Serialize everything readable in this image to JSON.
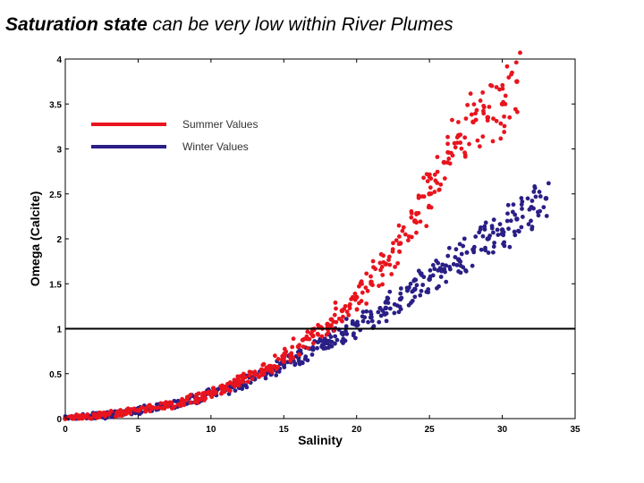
{
  "slide": {
    "title_bold": "Saturation state",
    "title_rest": " can be very low within River Plumes"
  },
  "colors": {
    "summer": "#e8141e",
    "winter": "#2a1f86",
    "reference_line": "#000000"
  },
  "chart_data": {
    "type": "scatter",
    "title": "",
    "xlabel": "Salinity",
    "ylabel": "Omega (Calcite)",
    "xlim": [
      0,
      35
    ],
    "ylim": [
      0,
      4
    ],
    "xticks": [
      0,
      5,
      10,
      15,
      20,
      25,
      30,
      35
    ],
    "yticks": [
      0,
      0.5,
      1,
      1.5,
      2,
      2.5,
      3,
      3.5,
      4
    ],
    "ytick_labels": [
      "0",
      "0.5",
      "1",
      "1.5",
      "2",
      "2.5",
      "3",
      "3.5",
      "4"
    ],
    "grid": false,
    "legend_position": "top-left",
    "reference_line": {
      "y": 1
    },
    "series": [
      {
        "name": "Winter Values",
        "color": "#2a1f86",
        "x": [
          0,
          1,
          2,
          3,
          4,
          5,
          6,
          7,
          8,
          9,
          10,
          11,
          12,
          13,
          14,
          15,
          16,
          17,
          18,
          19,
          20,
          21,
          22,
          23,
          24,
          25,
          26,
          27,
          28,
          29,
          30,
          31,
          32,
          33
        ],
        "y": [
          0.0,
          0.02,
          0.03,
          0.04,
          0.06,
          0.09,
          0.12,
          0.15,
          0.18,
          0.22,
          0.27,
          0.32,
          0.38,
          0.44,
          0.52,
          0.6,
          0.68,
          0.77,
          0.86,
          0.95,
          1.04,
          1.13,
          1.23,
          1.33,
          1.44,
          1.55,
          1.66,
          1.77,
          1.88,
          2.0,
          2.1,
          2.22,
          2.35,
          2.45
        ]
      },
      {
        "name": "Summer Values",
        "color": "#e8141e",
        "x": [
          0,
          1,
          2,
          3,
          4,
          5,
          6,
          7,
          8,
          9,
          10,
          11,
          12,
          13,
          14,
          15,
          16,
          17,
          18,
          19,
          20,
          21,
          22,
          23,
          24,
          25,
          26,
          27,
          28,
          29,
          30,
          31
        ],
        "y": [
          0.0,
          0.02,
          0.03,
          0.05,
          0.07,
          0.09,
          0.12,
          0.15,
          0.19,
          0.23,
          0.28,
          0.34,
          0.41,
          0.49,
          0.58,
          0.68,
          0.8,
          0.92,
          1.05,
          1.2,
          1.35,
          1.52,
          1.72,
          1.95,
          2.2,
          2.5,
          2.85,
          3.15,
          3.3,
          3.35,
          3.5,
          3.75
        ]
      }
    ]
  }
}
